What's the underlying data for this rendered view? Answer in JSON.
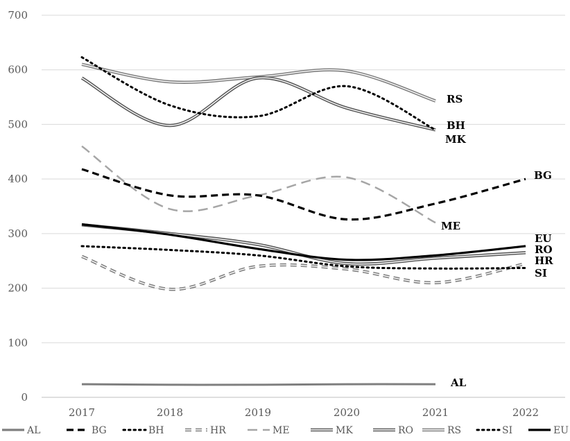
{
  "chart_data": {
    "type": "line",
    "title": "",
    "xlabel": "",
    "ylabel": "",
    "x": [
      "2017",
      "2018",
      "2019",
      "2020",
      "2021",
      "2022"
    ],
    "ylim": [
      0,
      700
    ],
    "yticks": [
      "0",
      "100",
      "200",
      "300",
      "400",
      "500",
      "600",
      "700"
    ],
    "grid": true,
    "legend_position": "bottom",
    "series": [
      {
        "name": "AL",
        "end_label": "AL",
        "values": [
          24,
          23,
          23,
          24,
          24,
          null
        ],
        "color": "#7f7f7f",
        "style": "solid"
      },
      {
        "name": "BG",
        "end_label": "BG",
        "values": [
          418,
          370,
          370,
          326,
          355,
          400
        ],
        "color": "#000000",
        "style": "dashed"
      },
      {
        "name": "BH",
        "end_label": "BH",
        "values": [
          623,
          535,
          515,
          570,
          490,
          null
        ],
        "color": "#000000",
        "style": "dotted"
      },
      {
        "name": "HR",
        "end_label": "HR",
        "values": [
          258,
          198,
          240,
          235,
          210,
          245
        ],
        "color": "#7f7f7f",
        "style": "double-dashed"
      },
      {
        "name": "ME",
        "end_label": "ME",
        "values": [
          460,
          345,
          370,
          403,
          320,
          null
        ],
        "color": "#a6a6a6",
        "style": "long-dashed"
      },
      {
        "name": "MK",
        "end_label": "MK",
        "values": [
          585,
          498,
          585,
          530,
          490,
          null
        ],
        "color": "#595959",
        "style": "double"
      },
      {
        "name": "RO",
        "end_label": "RO",
        "values": [
          316,
          300,
          280,
          245,
          255,
          265
        ],
        "color": "#595959",
        "style": "double"
      },
      {
        "name": "RS",
        "end_label": "RS",
        "values": [
          610,
          578,
          587,
          598,
          543,
          null
        ],
        "color": "#7f7f7f",
        "style": "double"
      },
      {
        "name": "SI",
        "end_label": "SI",
        "values": [
          277,
          270,
          260,
          240,
          236,
          237
        ],
        "color": "#000000",
        "style": "dotted"
      },
      {
        "name": "EU",
        "end_label": "EU",
        "values": [
          317,
          298,
          272,
          252,
          260,
          277
        ],
        "color": "#000000",
        "style": "solid"
      }
    ]
  }
}
